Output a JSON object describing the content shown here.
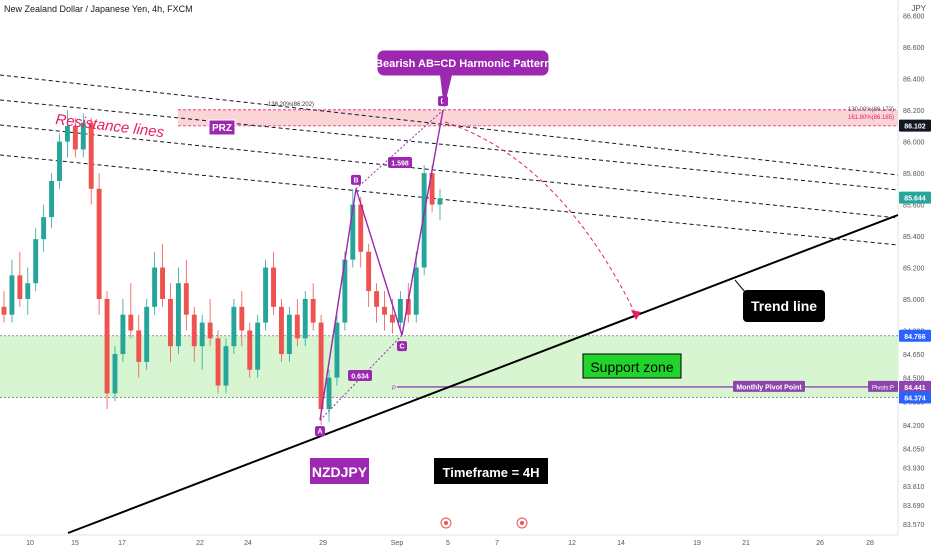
{
  "header": {
    "title": "New Zealand Dollar / Japanese Yen, 4h, FXCM",
    "currency": "JPY"
  },
  "chart_data": {
    "type": "candlestick",
    "symbol": "NZDJPY",
    "timeframe": "4h",
    "ylim": [
      83.5,
      86.9
    ],
    "y_ticks": [
      86.8,
      86.6,
      86.4,
      86.2,
      86.0,
      85.8,
      85.6,
      85.4,
      85.2,
      85.0,
      84.8,
      84.65,
      84.5,
      84.35,
      84.2,
      84.05,
      83.93,
      83.81,
      83.69,
      83.57
    ],
    "y_tick_labels": [
      "86.800",
      "86.600",
      "86.400",
      "86.200",
      "86.000",
      "85.800",
      "85.600",
      "85.400",
      "85.200",
      "85.000",
      "84.800",
      "84.650",
      "84.500",
      "84.350",
      "84.200",
      "84.050",
      "83.930",
      "83.810",
      "83.690",
      "83.570"
    ],
    "x_tick_labels": [
      "10",
      "15",
      "17",
      "22",
      "24",
      "29",
      "Sep",
      "5",
      "7",
      "12",
      "14",
      "19",
      "21",
      "26",
      "28"
    ],
    "price_tags": [
      {
        "value": 86.102,
        "label": "86.102",
        "color": "#131722",
        "text_color": "#ffffff"
      },
      {
        "value": 85.644,
        "label": "85.644",
        "color": "#26a69a",
        "text_color": "#ffffff"
      },
      {
        "value": 84.766,
        "label": "84.766",
        "color": "#2962ff",
        "text_color": "#ffffff"
      },
      {
        "value": 84.441,
        "label": "84.441",
        "color": "#8e44ad",
        "text_color": "#ffffff"
      },
      {
        "value": 84.374,
        "label": "84.374",
        "color": "#2962ff",
        "text_color": "#ffffff"
      }
    ],
    "pattern": {
      "name": "Bearish AB=CD Harmonic Pattern",
      "points": [
        {
          "label": "A",
          "value": 84.23
        },
        {
          "label": "B",
          "value": 85.7
        },
        {
          "label": "C",
          "value": 84.77
        },
        {
          "label": "D",
          "value": 86.2
        }
      ],
      "ratios": [
        "0.634",
        "1.598"
      ]
    },
    "prz": {
      "label": "PRZ",
      "high": 86.202,
      "low": 86.1,
      "fib_labels": [
        "138.20%(86.202)",
        "130.00%(86.173)",
        "161.80%(86.185)"
      ]
    },
    "support_zone": {
      "label": "Support zone",
      "high": 84.766,
      "low": 84.374
    },
    "pivot": {
      "label": "Monthly Pivot Point",
      "value": 84.441,
      "tag": "Pivots:P",
      "marker": "P"
    },
    "annotations": {
      "resistance": "Resistance lines",
      "trend": "Trend line",
      "symbol": "NZDJPY",
      "timeframe": "Timeframe = 4H"
    },
    "colors": {
      "up": "#26a69a",
      "down": "#ef5350",
      "pattern": "#9c27b0",
      "prz_fill": "#fbd5d5",
      "support_fill": "#d8f5d2",
      "resistance_text": "#e91e63"
    },
    "candles": [
      [
        84.95,
        85.05,
        84.85,
        84.9
      ],
      [
        84.9,
        85.25,
        84.85,
        85.15
      ],
      [
        85.15,
        85.3,
        84.95,
        85.0
      ],
      [
        85.0,
        85.2,
        84.9,
        85.1
      ],
      [
        85.1,
        85.45,
        85.05,
        85.38
      ],
      [
        85.38,
        85.6,
        85.3,
        85.52
      ],
      [
        85.52,
        85.8,
        85.45,
        85.75
      ],
      [
        85.75,
        86.05,
        85.7,
        86.0
      ],
      [
        86.0,
        86.2,
        85.9,
        86.1
      ],
      [
        86.1,
        86.15,
        85.9,
        85.95
      ],
      [
        85.95,
        86.18,
        85.9,
        86.12
      ],
      [
        86.12,
        86.15,
        85.6,
        85.7
      ],
      [
        85.7,
        85.8,
        84.9,
        85.0
      ],
      [
        85.0,
        85.05,
        84.3,
        84.4
      ],
      [
        84.4,
        84.7,
        84.35,
        84.65
      ],
      [
        84.65,
        85.0,
        84.6,
        84.9
      ],
      [
        84.9,
        85.1,
        84.75,
        84.8
      ],
      [
        84.8,
        84.9,
        84.5,
        84.6
      ],
      [
        84.6,
        85.0,
        84.55,
        84.95
      ],
      [
        84.95,
        85.3,
        84.9,
        85.2
      ],
      [
        85.2,
        85.35,
        84.95,
        85.0
      ],
      [
        85.0,
        85.1,
        84.6,
        84.7
      ],
      [
        84.7,
        85.2,
        84.65,
        85.1
      ],
      [
        85.1,
        85.25,
        84.8,
        84.9
      ],
      [
        84.9,
        84.95,
        84.6,
        84.7
      ],
      [
        84.7,
        84.9,
        84.55,
        84.85
      ],
      [
        84.85,
        85.0,
        84.7,
        84.75
      ],
      [
        84.75,
        84.8,
        84.4,
        84.45
      ],
      [
        84.45,
        84.75,
        84.4,
        84.7
      ],
      [
        84.7,
        85.0,
        84.65,
        84.95
      ],
      [
        84.95,
        85.05,
        84.7,
        84.8
      ],
      [
        84.8,
        84.85,
        84.5,
        84.55
      ],
      [
        84.55,
        84.9,
        84.5,
        84.85
      ],
      [
        84.85,
        85.25,
        84.8,
        85.2
      ],
      [
        85.2,
        85.3,
        84.9,
        84.95
      ],
      [
        84.95,
        85.0,
        84.6,
        84.65
      ],
      [
        84.65,
        84.95,
        84.6,
        84.9
      ],
      [
        84.9,
        85.0,
        84.7,
        84.75
      ],
      [
        84.75,
        85.05,
        84.7,
        85.0
      ],
      [
        85.0,
        85.1,
        84.8,
        84.85
      ],
      [
        84.85,
        84.9,
        84.2,
        84.3
      ],
      [
        84.3,
        84.55,
        84.22,
        84.5
      ],
      [
        84.5,
        84.9,
        84.45,
        84.85
      ],
      [
        84.85,
        85.3,
        84.8,
        85.25
      ],
      [
        85.25,
        85.7,
        85.2,
        85.6
      ],
      [
        85.6,
        85.65,
        85.2,
        85.3
      ],
      [
        85.3,
        85.35,
        84.95,
        85.05
      ],
      [
        85.05,
        85.1,
        84.85,
        84.95
      ],
      [
        84.95,
        85.05,
        84.8,
        84.9
      ],
      [
        84.9,
        85.0,
        84.78,
        84.85
      ],
      [
        84.85,
        85.05,
        84.8,
        85.0
      ],
      [
        85.0,
        85.1,
        84.85,
        84.9
      ],
      [
        84.9,
        85.3,
        84.85,
        85.2
      ],
      [
        85.2,
        85.85,
        85.15,
        85.8
      ],
      [
        85.8,
        85.85,
        85.55,
        85.6
      ],
      [
        85.6,
        85.7,
        85.5,
        85.64
      ]
    ]
  }
}
